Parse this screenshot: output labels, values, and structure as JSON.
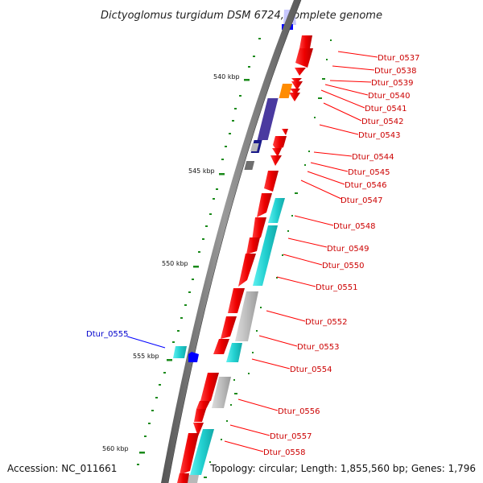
{
  "title": "Dictyoglomus turgidum DSM 6724, complete genome",
  "accession_text": "Accession: NC_011661",
  "topology_text": "Topology: circular; Length: 1,855,560 bp; Genes: 1,796",
  "colors": {
    "forward_cds": "#ff0000",
    "reverse_cds": "#0000ff",
    "label_forward": "#cc0000",
    "label_reverse": "#0000cc",
    "backbone": "#777777",
    "tick": "#1a8a1a",
    "cog_cyan": "#22d0d0",
    "cog_gray": "#b8b8b8",
    "cog_orange": "#ff8c00",
    "cog_purple": "#4a3aa0",
    "cog_navy": "#1a1a8a",
    "cog_darkgray": "#777777"
  },
  "scale_labels": [
    "540 kbp",
    "545 kbp",
    "550 kbp",
    "555 kbp",
    "560 kbp"
  ],
  "genes": [
    {
      "id": "Dtur_0537",
      "strand": "+"
    },
    {
      "id": "Dtur_0538",
      "strand": "+"
    },
    {
      "id": "Dtur_0539",
      "strand": "+"
    },
    {
      "id": "Dtur_0540",
      "strand": "+"
    },
    {
      "id": "Dtur_0541",
      "strand": "+"
    },
    {
      "id": "Dtur_0542",
      "strand": "+"
    },
    {
      "id": "Dtur_0543",
      "strand": "+"
    },
    {
      "id": "Dtur_0544",
      "strand": "+"
    },
    {
      "id": "Dtur_0545",
      "strand": "+"
    },
    {
      "id": "Dtur_0546",
      "strand": "+"
    },
    {
      "id": "Dtur_0547",
      "strand": "+"
    },
    {
      "id": "Dtur_0548",
      "strand": "+"
    },
    {
      "id": "Dtur_0549",
      "strand": "+"
    },
    {
      "id": "Dtur_0550",
      "strand": "+"
    },
    {
      "id": "Dtur_0551",
      "strand": "+"
    },
    {
      "id": "Dtur_0552",
      "strand": "+"
    },
    {
      "id": "Dtur_0553",
      "strand": "+"
    },
    {
      "id": "Dtur_0554",
      "strand": "+"
    },
    {
      "id": "Dtur_0555",
      "strand": "-"
    },
    {
      "id": "Dtur_0556",
      "strand": "+"
    },
    {
      "id": "Dtur_0557",
      "strand": "+"
    },
    {
      "id": "Dtur_0558",
      "strand": "+"
    }
  ]
}
